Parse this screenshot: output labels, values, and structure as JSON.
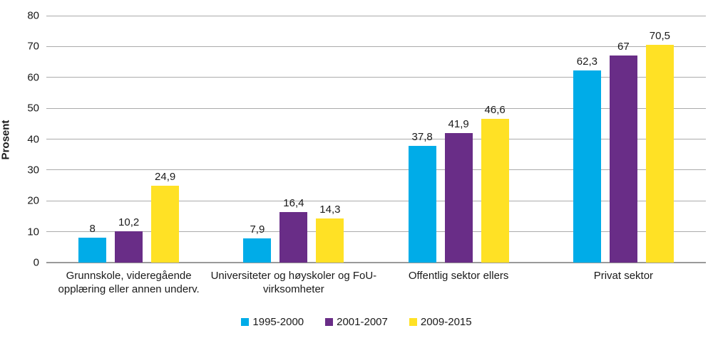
{
  "chart_data": {
    "type": "bar",
    "title": "",
    "xlabel": "",
    "ylabel": "Prosent",
    "ylim": [
      0,
      80
    ],
    "ytick_step": 10,
    "ytick_labels": [
      "0",
      "10",
      "20",
      "30",
      "40",
      "50",
      "60",
      "70",
      "80"
    ],
    "grid": "horizontal",
    "legend_position": "bottom-center",
    "decimal_separator": ",",
    "categories": [
      "Grunnskole, videregående opplæring eller annen underv.",
      "Universiteter og høyskoler og FoU-virksomheter",
      "Offentlig sektor ellers",
      "Privat sektor"
    ],
    "series": [
      {
        "name": "1995-2000",
        "color": "#00ACE8",
        "values": [
          8,
          7.9,
          37.8,
          62.3
        ],
        "labels": [
          "8",
          "7,9",
          "37,8",
          "62,3"
        ]
      },
      {
        "name": "2001-2007",
        "color": "#692D87",
        "values": [
          10.2,
          16.4,
          41.9,
          67
        ],
        "labels": [
          "10,2",
          "16,4",
          "41,9",
          "67"
        ]
      },
      {
        "name": "2009-2015",
        "color": "#FFE125",
        "values": [
          24.9,
          14.3,
          46.6,
          70.5
        ],
        "labels": [
          "24,9",
          "14,3",
          "46,6",
          "70,5"
        ]
      }
    ],
    "colors": {
      "gridline": "#ababab",
      "axis_line": "#9a9a9a",
      "text": "#1a1a1a",
      "background": "#ffffff"
    }
  }
}
